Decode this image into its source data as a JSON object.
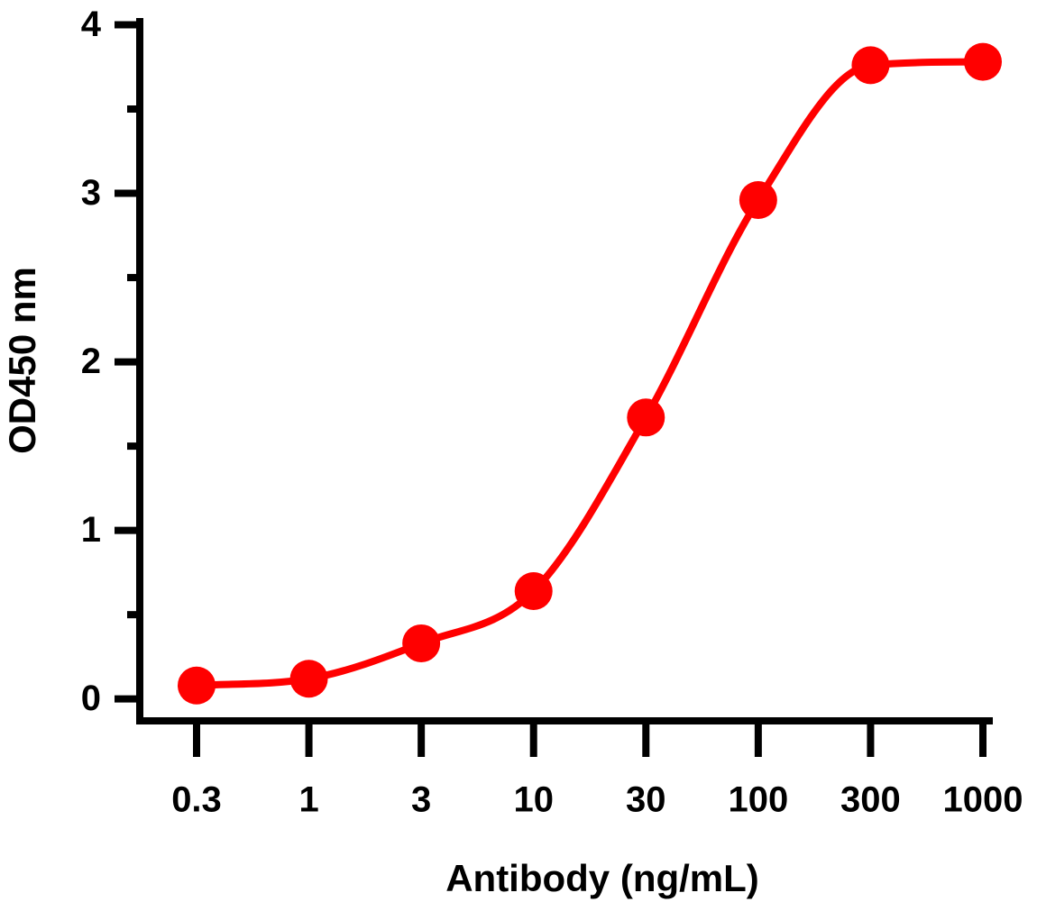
{
  "chart_data": {
    "type": "line",
    "x_label": "Antibody (ng/mL)",
    "y_label": "OD450 nm",
    "categories": [
      "0.3",
      "1",
      "3",
      "10",
      "30",
      "100",
      "300",
      "1000"
    ],
    "values": [
      0.08,
      0.12,
      0.33,
      0.64,
      1.67,
      2.96,
      3.76,
      3.78
    ],
    "color": "#ff0000",
    "ylim": [
      -0.13,
      4.04
    ],
    "yticks": [
      0,
      1,
      2,
      3,
      4
    ],
    "yticks_minor": [
      0.5,
      1.5,
      2.5,
      3.5
    ]
  }
}
